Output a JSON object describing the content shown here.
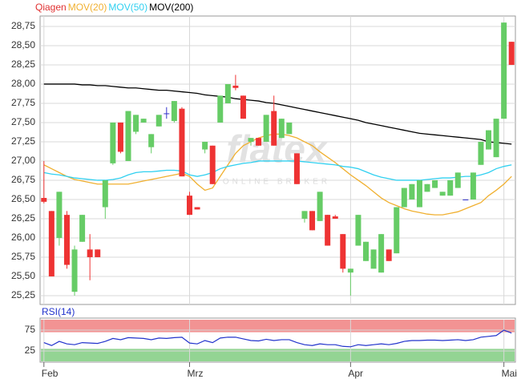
{
  "chart_data": [
    {
      "type": "candlestick",
      "name": "Qiagen",
      "color": "#e03030",
      "up_color": "#66cc66",
      "down_color": "#ee3333",
      "doji_color": "#3333cc",
      "watermark": "flatex",
      "watermark_subtitle": "ONLINE BROKER",
      "categories": [
        "Feb",
        null,
        null,
        null,
        null,
        null,
        null,
        null,
        null,
        null,
        null,
        null,
        null,
        null,
        null,
        null,
        null,
        null,
        null,
        "Mrz",
        null,
        null,
        null,
        null,
        null,
        null,
        null,
        null,
        null,
        null,
        null,
        null,
        null,
        null,
        null,
        null,
        null,
        null,
        null,
        null,
        "Apr",
        null,
        null,
        null,
        null,
        null,
        null,
        null,
        null,
        null,
        null,
        null,
        null,
        null,
        null,
        null,
        null,
        null,
        null,
        null,
        "Mai",
        null
      ],
      "open": [
        26.52,
        26.35,
        26.0,
        26.3,
        25.3,
        25.95,
        25.85,
        25.85,
        26.4,
        26.97,
        27.5,
        27.0,
        27.38,
        27.5,
        27.18,
        27.45,
        27.62,
        27.52,
        27.68,
        26.55,
        26.4,
        27.15,
        27.2,
        27.5,
        27.75,
        27.98,
        27.85,
        27.25,
        27.3,
        27.25,
        27.65,
        27.3,
        27.35,
        27.1,
        26.25,
        26.35,
        26.22,
        26.3,
        26.28,
        26.05,
        25.55,
        25.9,
        25.7,
        25.6,
        25.55,
        25.85,
        25.8,
        26.4,
        26.5,
        26.4,
        26.6,
        26.65,
        26.55,
        26.55,
        26.65,
        26.5,
        26.5,
        26.95,
        27.15,
        27.05,
        27.55,
        28.55
      ],
      "high": [
        27.0,
        26.35,
        26.6,
        26.35,
        25.9,
        26.3,
        26.05,
        25.85,
        26.75,
        27.5,
        27.5,
        27.65,
        27.6,
        27.55,
        27.35,
        27.6,
        27.7,
        27.78,
        27.7,
        26.6,
        26.4,
        27.25,
        27.2,
        27.85,
        28.0,
        28.12,
        27.85,
        27.3,
        27.3,
        27.6,
        27.85,
        27.55,
        27.5,
        27.1,
        26.35,
        26.35,
        26.6,
        26.3,
        26.3,
        26.05,
        25.6,
        26.3,
        25.95,
        25.85,
        26.05,
        25.85,
        26.4,
        26.65,
        26.7,
        26.75,
        26.7,
        26.75,
        26.6,
        26.75,
        26.85,
        26.5,
        26.85,
        27.25,
        27.4,
        27.55,
        28.8,
        28.55
      ],
      "low": [
        26.45,
        25.5,
        25.9,
        25.6,
        25.25,
        25.95,
        25.45,
        25.75,
        26.25,
        26.95,
        27.1,
        27.0,
        27.35,
        27.5,
        27.1,
        27.45,
        27.55,
        27.5,
        26.8,
        26.3,
        26.37,
        27.1,
        26.7,
        27.5,
        27.75,
        27.92,
        27.55,
        27.2,
        27.2,
        27.25,
        27.2,
        27.3,
        27.35,
        26.7,
        26.2,
        26.1,
        26.22,
        25.9,
        26.25,
        25.55,
        25.25,
        25.9,
        25.7,
        25.6,
        25.55,
        25.7,
        25.8,
        26.4,
        26.5,
        26.4,
        26.6,
        26.65,
        26.55,
        26.55,
        26.65,
        26.5,
        26.5,
        26.95,
        27.15,
        27.05,
        27.55,
        28.25
      ],
      "close": [
        26.47,
        25.5,
        26.6,
        25.65,
        25.85,
        26.3,
        25.75,
        25.75,
        26.75,
        27.5,
        27.12,
        27.65,
        27.6,
        27.55,
        27.35,
        27.6,
        27.62,
        27.78,
        26.8,
        26.3,
        26.37,
        27.25,
        26.7,
        27.85,
        28.0,
        27.95,
        27.55,
        27.3,
        27.2,
        27.6,
        27.2,
        27.55,
        27.5,
        26.7,
        26.35,
        26.1,
        26.6,
        25.9,
        26.25,
        25.6,
        25.6,
        26.3,
        25.95,
        25.85,
        26.05,
        25.7,
        26.4,
        26.65,
        26.7,
        26.75,
        26.7,
        26.75,
        26.6,
        26.75,
        26.85,
        26.5,
        26.85,
        27.25,
        27.4,
        27.55,
        28.8,
        28.25
      ],
      "series": [
        {
          "name": "MOV(20)",
          "color": "#f0b030",
          "values": [
            26.95,
            26.9,
            26.85,
            26.8,
            26.76,
            26.74,
            26.72,
            26.7,
            26.7,
            26.7,
            26.7,
            26.7,
            26.72,
            26.74,
            26.76,
            26.78,
            26.8,
            26.82,
            26.84,
            26.8,
            26.7,
            26.62,
            26.65,
            26.8,
            26.95,
            27.1,
            27.2,
            27.25,
            27.3,
            27.33,
            27.35,
            27.35,
            27.33,
            27.3,
            27.25,
            27.2,
            27.12,
            27.05,
            26.98,
            26.9,
            26.82,
            26.75,
            26.68,
            26.6,
            26.52,
            26.46,
            26.42,
            26.38,
            26.35,
            26.33,
            26.31,
            26.3,
            26.3,
            26.32,
            26.34,
            26.38,
            26.42,
            26.46,
            26.55,
            26.62,
            26.7,
            26.8
          ]
        },
        {
          "name": "MOV(50)",
          "color": "#30d0f0",
          "values": [
            26.85,
            26.83,
            26.82,
            26.8,
            26.78,
            26.77,
            26.76,
            26.75,
            26.75,
            26.76,
            26.78,
            26.82,
            26.85,
            26.86,
            26.86,
            26.87,
            26.88,
            26.88,
            26.87,
            26.82,
            26.8,
            26.82,
            26.85,
            26.9,
            26.93,
            26.95,
            26.97,
            26.98,
            27.0,
            27.0,
            27.0,
            27.0,
            27.0,
            27.0,
            26.99,
            26.98,
            26.97,
            26.96,
            26.95,
            26.93,
            26.92,
            26.9,
            26.86,
            26.82,
            26.79,
            26.77,
            26.75,
            26.75,
            26.75,
            26.75,
            26.76,
            26.77,
            26.78,
            26.78,
            26.79,
            26.8,
            26.8,
            26.82,
            26.85,
            26.9,
            26.93,
            26.95
          ]
        },
        {
          "name": "MOV(200)",
          "color": "#000000",
          "values": [
            28.0,
            28.0,
            28.0,
            28.0,
            28.0,
            27.99,
            27.99,
            27.98,
            27.98,
            27.97,
            27.96,
            27.95,
            27.95,
            27.94,
            27.93,
            27.92,
            27.92,
            27.91,
            27.9,
            27.89,
            27.88,
            27.86,
            27.85,
            27.84,
            27.83,
            27.81,
            27.8,
            27.79,
            27.78,
            27.76,
            27.75,
            27.73,
            27.71,
            27.69,
            27.67,
            27.65,
            27.63,
            27.61,
            27.59,
            27.57,
            27.55,
            27.53,
            27.5,
            27.48,
            27.46,
            27.44,
            27.42,
            27.4,
            27.38,
            27.36,
            27.35,
            27.34,
            27.33,
            27.32,
            27.31,
            27.3,
            27.29,
            27.28,
            27.25,
            27.24,
            27.23,
            27.22
          ]
        }
      ],
      "ylim": [
        25.135,
        28.885
      ],
      "yticks": [
        {
          "value": 25.25,
          "label": "25,25"
        },
        {
          "value": 25.5,
          "label": "25,50"
        },
        {
          "value": 25.75,
          "label": "25,75"
        },
        {
          "value": 26.0,
          "label": "26,00"
        },
        {
          "value": 26.25,
          "label": "26,25"
        },
        {
          "value": 26.5,
          "label": "26,50"
        },
        {
          "value": 26.75,
          "label": "26,75"
        },
        {
          "value": 27.0,
          "label": "27,00"
        },
        {
          "value": 27.25,
          "label": "27,25"
        },
        {
          "value": 27.5,
          "label": "27,50"
        },
        {
          "value": 27.75,
          "label": "27,75"
        },
        {
          "value": 28.0,
          "label": "28,00"
        },
        {
          "value": 28.25,
          "label": "28,25"
        },
        {
          "value": 28.5,
          "label": "28,50"
        },
        {
          "value": 28.75,
          "label": "28,75"
        }
      ],
      "grid": true
    },
    {
      "type": "line",
      "title": "RSI(14)",
      "color": "#2233cc",
      "values": [
        45,
        38,
        48,
        42,
        40,
        45,
        44,
        43,
        48,
        55,
        52,
        57,
        56,
        55,
        52,
        56,
        55,
        57,
        58,
        44,
        42,
        50,
        45,
        56,
        58,
        58,
        54,
        50,
        49,
        53,
        50,
        52,
        52,
        45,
        40,
        38,
        42,
        40,
        40,
        36,
        35,
        40,
        38,
        40,
        42,
        40,
        43,
        48,
        50,
        50,
        51,
        51,
        50,
        51,
        52,
        50,
        52,
        58,
        60,
        62,
        75,
        68
      ],
      "bands": [
        {
          "range": [
            70,
            100
          ],
          "color": "#f08080"
        },
        {
          "range": [
            0,
            30
          ],
          "color": "#80cc80"
        }
      ],
      "ylim": [
        0,
        100
      ],
      "yticks": [
        25,
        75
      ],
      "grid": true
    }
  ]
}
